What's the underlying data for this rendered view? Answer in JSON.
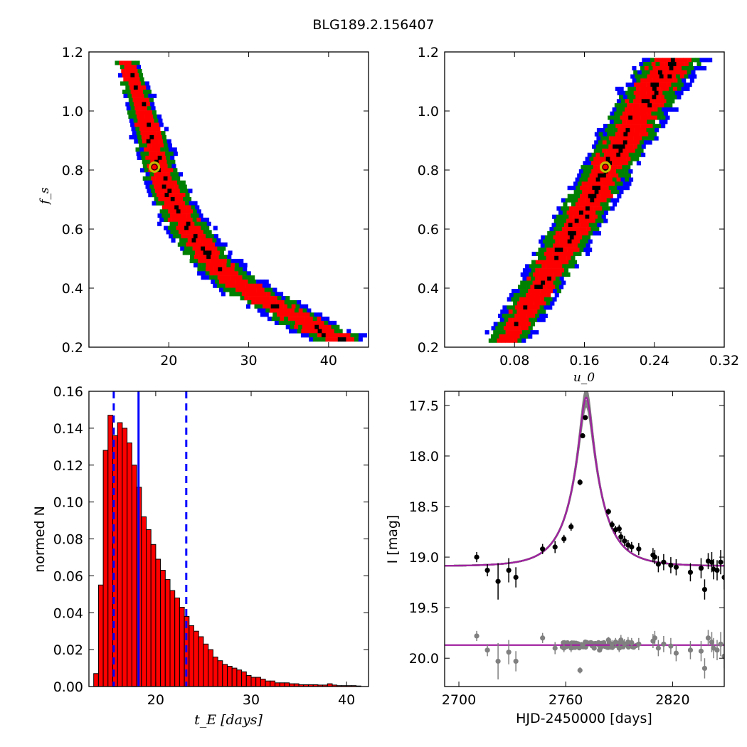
{
  "figure": {
    "title": "BLG189.2.156407"
  },
  "colors": {
    "blue": "#0000ff",
    "green": "#008000",
    "red": "#ff0000",
    "black": "#000000",
    "marker": "#bfbf00",
    "purple": "#a020a0",
    "gray": "#808080"
  },
  "chart_data": [
    {
      "id": "fs_vs_tE",
      "type": "heatmap",
      "title": "",
      "xlabel": "",
      "ylabel": "f_s",
      "xlim": [
        10,
        45
      ],
      "ylim": [
        0.2,
        1.2
      ],
      "xticks": [
        "20",
        "30",
        "40"
      ],
      "yticks": [
        "0.2",
        "0.4",
        "0.6",
        "0.8",
        "1.0",
        "1.2"
      ],
      "levels": [
        "blue",
        "green",
        "red",
        "black"
      ],
      "ridge": [
        [
          14.5,
          1.17
        ],
        [
          16,
          1.05
        ],
        [
          17.5,
          0.92
        ],
        [
          18.5,
          0.82
        ],
        [
          20,
          0.72
        ],
        [
          22,
          0.62
        ],
        [
          24.5,
          0.52
        ],
        [
          27.5,
          0.44
        ],
        [
          31,
          0.38
        ],
        [
          35,
          0.32
        ],
        [
          39,
          0.26
        ],
        [
          42,
          0.22
        ]
      ],
      "best_fit": {
        "x": 18.2,
        "y": 0.81
      }
    },
    {
      "id": "fs_vs_u0",
      "type": "heatmap",
      "title": "",
      "xlabel": "u_0",
      "ylabel": "",
      "xlim": [
        0.0,
        0.32
      ],
      "ylim": [
        0.2,
        1.2
      ],
      "xticks": [
        "0.08",
        "0.16",
        "0.24",
        "0.32"
      ],
      "yticks": [
        "0.2",
        "0.4",
        "0.6",
        "0.8",
        "1.0",
        "1.2"
      ],
      "levels": [
        "blue",
        "green",
        "red",
        "black"
      ],
      "ridge": [
        [
          0.068,
          0.22
        ],
        [
          0.09,
          0.33
        ],
        [
          0.11,
          0.43
        ],
        [
          0.13,
          0.53
        ],
        [
          0.15,
          0.63
        ],
        [
          0.17,
          0.73
        ],
        [
          0.185,
          0.82
        ],
        [
          0.205,
          0.92
        ],
        [
          0.225,
          1.02
        ],
        [
          0.245,
          1.12
        ],
        [
          0.26,
          1.18
        ]
      ],
      "best_fit": {
        "x": 0.184,
        "y": 0.81
      }
    },
    {
      "id": "tE_hist",
      "type": "bar",
      "title": "",
      "xlabel": "t_E  [days]",
      "ylabel": "normed N",
      "xlim": [
        13,
        42.3
      ],
      "ylim": [
        0,
        0.16
      ],
      "xticks": [
        "20",
        "30",
        "40"
      ],
      "yticks": [
        "0.00",
        "0.02",
        "0.04",
        "0.06",
        "0.08",
        "0.10",
        "0.12",
        "0.14",
        "0.16"
      ],
      "bin_start": 13.5,
      "bin_width": 0.5,
      "values": [
        0.007,
        0.055,
        0.128,
        0.147,
        0.136,
        0.143,
        0.14,
        0.132,
        0.12,
        0.108,
        0.092,
        0.085,
        0.077,
        0.069,
        0.063,
        0.058,
        0.052,
        0.048,
        0.043,
        0.038,
        0.033,
        0.03,
        0.027,
        0.023,
        0.02,
        0.016,
        0.014,
        0.012,
        0.011,
        0.01,
        0.009,
        0.008,
        0.006,
        0.005,
        0.005,
        0.004,
        0.003,
        0.003,
        0.002,
        0.002,
        0.002,
        0.0015,
        0.0015,
        0.001,
        0.001,
        0.001,
        0.001,
        0.0008,
        0.0008,
        0.0015,
        0.0008,
        0.0005,
        0.0005,
        0.0005,
        0.0005,
        0.0003
      ],
      "median": 18.2,
      "percentiles": [
        15.6,
        23.2
      ]
    },
    {
      "id": "light_curve",
      "type": "scatter",
      "title": "",
      "xlabel": "HJD-2450000 [days]",
      "ylabel": "I [mag]",
      "xlim": [
        2692,
        2849
      ],
      "ylim": [
        20.28,
        17.36
      ],
      "xticks": [
        "2700",
        "2760",
        "2820"
      ],
      "yticks": [
        "17.5",
        "18.0",
        "18.5",
        "19.0",
        "19.5",
        "20.0"
      ],
      "model": {
        "t0": 2771.5,
        "tE": 18.2,
        "u0": 0.184,
        "fs": 0.81,
        "base": 19.09
      },
      "points": [
        [
          2710,
          19.0,
          0.05
        ],
        [
          2716,
          19.13,
          0.06
        ],
        [
          2722,
          19.24,
          0.18
        ],
        [
          2728,
          19.13,
          0.12
        ],
        [
          2732,
          19.2,
          0.1
        ],
        [
          2747,
          18.92,
          0.05
        ],
        [
          2754,
          18.9,
          0.06
        ],
        [
          2759,
          18.82,
          0.04
        ],
        [
          2763,
          18.7,
          0.04
        ],
        [
          2768,
          18.26,
          0.03
        ],
        [
          2769.5,
          17.8,
          0.02
        ],
        [
          2771,
          17.62,
          0.02
        ],
        [
          2784,
          18.55,
          0.03
        ],
        [
          2786,
          18.68,
          0.04
        ],
        [
          2788,
          18.73,
          0.04
        ],
        [
          2790,
          18.72,
          0.04
        ],
        [
          2791,
          18.8,
          0.05
        ],
        [
          2793,
          18.84,
          0.05
        ],
        [
          2795,
          18.88,
          0.05
        ],
        [
          2797,
          18.9,
          0.05
        ],
        [
          2801,
          18.92,
          0.06
        ],
        [
          2809,
          18.98,
          0.07
        ],
        [
          2810,
          19.0,
          0.07
        ],
        [
          2812,
          19.07,
          0.08
        ],
        [
          2815,
          19.05,
          0.08
        ],
        [
          2819,
          19.08,
          0.08
        ],
        [
          2822,
          19.1,
          0.08
        ],
        [
          2830,
          19.15,
          0.09
        ],
        [
          2836,
          19.11,
          0.1
        ],
        [
          2838,
          19.32,
          0.1
        ],
        [
          2840,
          19.04,
          0.08
        ],
        [
          2842,
          19.05,
          0.1
        ],
        [
          2843,
          19.12,
          0.1
        ],
        [
          2845,
          19.13,
          0.1
        ],
        [
          2847,
          19.05,
          0.12
        ],
        [
          2849,
          19.2,
          0.12
        ]
      ],
      "residual_base": 19.87,
      "residuals": [
        [
          2710,
          19.78,
          0.05
        ],
        [
          2716,
          19.92,
          0.06
        ],
        [
          2722,
          20.03,
          0.18
        ],
        [
          2728,
          19.94,
          0.12
        ],
        [
          2732,
          20.03,
          0.1
        ],
        [
          2747,
          19.8,
          0.05
        ],
        [
          2754,
          19.9,
          0.06
        ],
        [
          2759,
          19.9,
          0.04
        ],
        [
          2763,
          19.9,
          0.04
        ],
        [
          2768,
          20.12,
          0.03
        ],
        [
          2769.5,
          19.87,
          0.02
        ],
        [
          2771,
          19.84,
          0.02
        ],
        [
          2776,
          19.9,
          0.02
        ],
        [
          2779,
          19.92,
          0.02
        ],
        [
          2784,
          19.82,
          0.03
        ],
        [
          2786,
          19.86,
          0.04
        ],
        [
          2788,
          19.84,
          0.04
        ],
        [
          2790,
          19.9,
          0.04
        ],
        [
          2791,
          19.82,
          0.05
        ],
        [
          2793,
          19.86,
          0.05
        ],
        [
          2795,
          19.84,
          0.05
        ],
        [
          2797,
          19.85,
          0.05
        ],
        [
          2801,
          19.86,
          0.06
        ],
        [
          2809,
          19.83,
          0.07
        ],
        [
          2810,
          19.8,
          0.07
        ],
        [
          2812,
          19.9,
          0.08
        ],
        [
          2815,
          19.86,
          0.08
        ],
        [
          2819,
          19.88,
          0.08
        ],
        [
          2822,
          19.95,
          0.08
        ],
        [
          2830,
          19.92,
          0.09
        ],
        [
          2836,
          19.93,
          0.1
        ],
        [
          2838,
          20.1,
          0.1
        ],
        [
          2840,
          19.8,
          0.08
        ],
        [
          2842,
          19.84,
          0.1
        ],
        [
          2843,
          19.9,
          0.1
        ],
        [
          2845,
          19.92,
          0.1
        ],
        [
          2847,
          19.86,
          0.12
        ],
        [
          2849,
          19.98,
          0.12
        ]
      ]
    }
  ]
}
